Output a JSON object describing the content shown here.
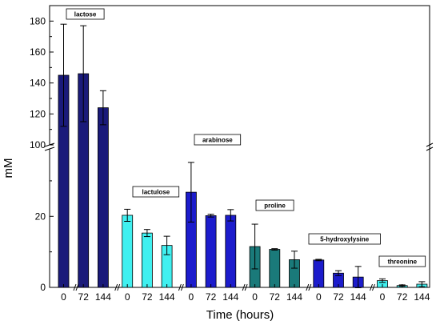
{
  "chart_data": {
    "type": "bar",
    "xlabel": "Time (hours)",
    "ylabel": "mM",
    "broken_y_axis": true,
    "y_lower_ticks": [
      "0",
      "20"
    ],
    "y_upper_ticks": [
      "100",
      "120",
      "140",
      "160",
      "180"
    ],
    "y_lower_range": [
      0,
      39
    ],
    "y_upper_range": [
      100,
      190
    ],
    "x_tick_labels": [
      "0",
      "72",
      "144"
    ],
    "groups": [
      {
        "name": "lactose",
        "color": "#1a1a7a",
        "times": [
          "0",
          "72",
          "144"
        ],
        "values": [
          145,
          146,
          124
        ],
        "errors": [
          33,
          31,
          11
        ]
      },
      {
        "name": "lactulose",
        "color": "#40f0f0",
        "times": [
          "0",
          "72",
          "144"
        ],
        "values": [
          20.3,
          15.3,
          11.8
        ],
        "errors": [
          1.7,
          1.0,
          2.6
        ]
      },
      {
        "name": "arabinose",
        "color": "#1c1ccc",
        "times": [
          "0",
          "72",
          "144"
        ],
        "values": [
          26.8,
          20.2,
          20.3
        ],
        "errors": [
          8.4,
          0.4,
          1.6
        ]
      },
      {
        "name": "proline",
        "color": "#1a7a7a",
        "times": [
          "0",
          "72",
          "144"
        ],
        "values": [
          11.5,
          10.7,
          7.8
        ],
        "errors": [
          6.3,
          0.2,
          2.4
        ]
      },
      {
        "name": "5-hydroxylysine",
        "color": "#1c1ccc",
        "times": [
          "0",
          "72",
          "144"
        ],
        "values": [
          7.7,
          4.0,
          2.9
        ],
        "errors": [
          0.2,
          0.7,
          3.0
        ]
      },
      {
        "name": "threonine",
        "color": "#40f0f0",
        "times": [
          "0",
          "72",
          "144"
        ],
        "values": [
          1.9,
          0.5,
          0.9
        ],
        "errors": [
          0.5,
          0.2,
          0.7
        ]
      }
    ]
  }
}
